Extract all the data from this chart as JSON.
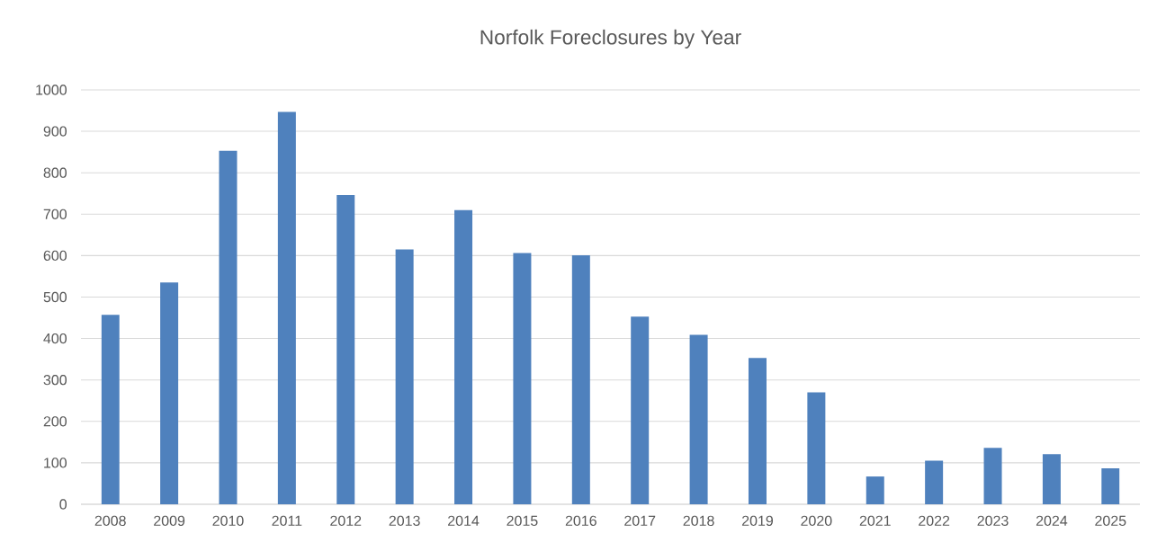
{
  "chart_data": {
    "type": "bar",
    "title": "Norfolk Foreclosures by Year",
    "categories": [
      "2008",
      "2009",
      "2010",
      "2011",
      "2012",
      "2013",
      "2014",
      "2015",
      "2016",
      "2017",
      "2018",
      "2019",
      "2020",
      "2021",
      "2022",
      "2023",
      "2024",
      "2025"
    ],
    "values": [
      457,
      535,
      853,
      947,
      746,
      615,
      710,
      606,
      601,
      453,
      409,
      353,
      270,
      67,
      105,
      136,
      121,
      87
    ],
    "color": "#4f81bd",
    "ylim": [
      0,
      1000
    ],
    "yticks": [
      0,
      100,
      200,
      300,
      400,
      500,
      600,
      700,
      800,
      900,
      1000
    ],
    "grid": "y"
  }
}
